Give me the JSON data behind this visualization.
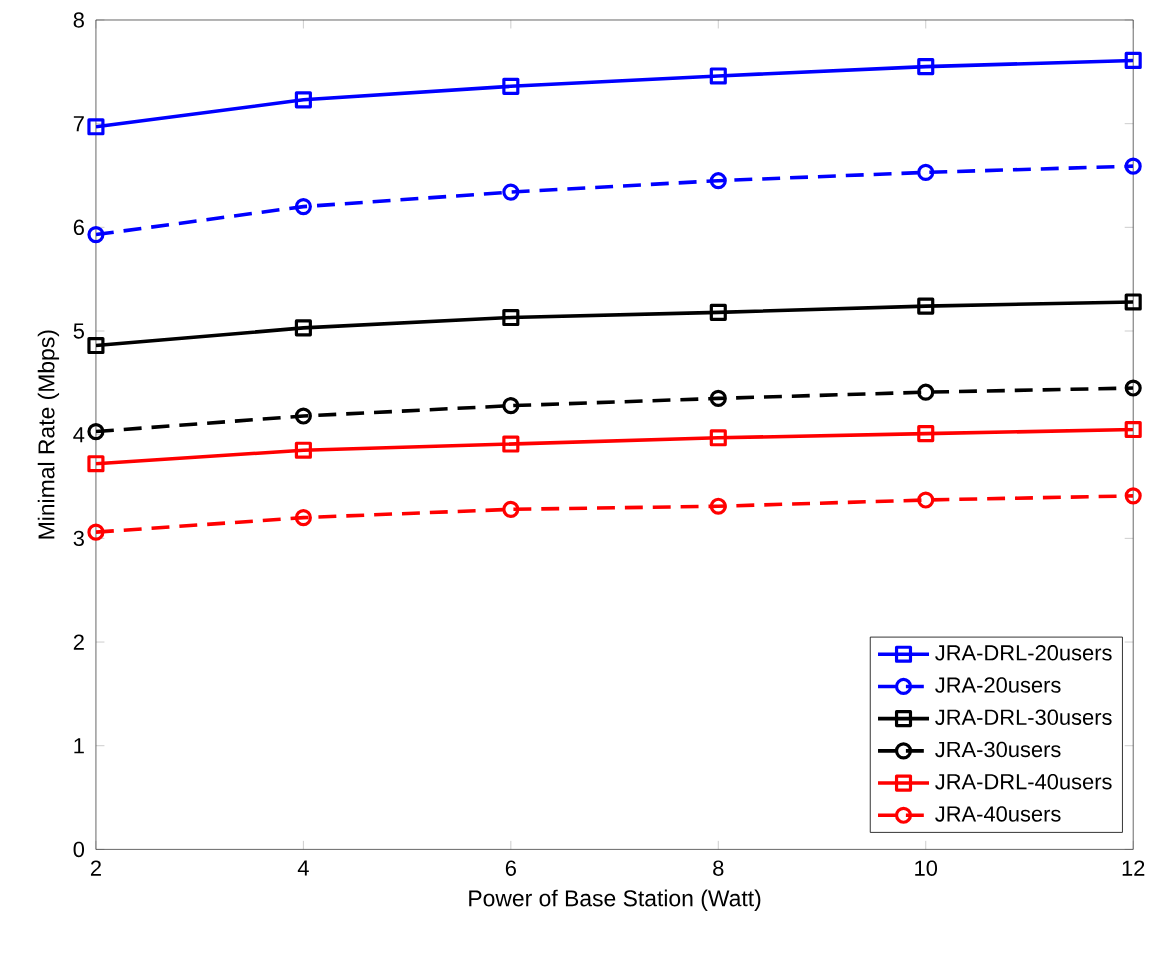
{
  "chart_data": {
    "type": "line",
    "xlabel": "Power of Base Station (Watt)",
    "ylabel": "Minimal Rate (Mbps)",
    "x": [
      2,
      4,
      6,
      8,
      10,
      12
    ],
    "xlim": [
      2,
      12
    ],
    "xticks": [
      2,
      4,
      6,
      8,
      10,
      12
    ],
    "ylim": [
      0,
      8
    ],
    "yticks": [
      0,
      1,
      2,
      3,
      4,
      5,
      6,
      7,
      8
    ],
    "legend": "bottom right",
    "grid": false,
    "series": [
      {
        "name": "JRA-DRL-20users",
        "color": "#0000ff",
        "marker": "square",
        "line_style": "solid",
        "values": [
          6.97,
          7.23,
          7.36,
          7.46,
          7.55,
          7.61
        ]
      },
      {
        "name": "JRA-20users",
        "color": "#0000ff",
        "marker": "circle",
        "line_style": "dashed",
        "values": [
          5.93,
          6.2,
          6.34,
          6.45,
          6.53,
          6.59
        ]
      },
      {
        "name": "JRA-DRL-30users",
        "color": "#000000",
        "marker": "square",
        "line_style": "solid",
        "values": [
          4.86,
          5.03,
          5.13,
          5.18,
          5.24,
          5.28
        ]
      },
      {
        "name": "JRA-30users",
        "color": "#000000",
        "marker": "circle",
        "line_style": "dashed",
        "values": [
          4.03,
          4.18,
          4.28,
          4.35,
          4.41,
          4.45
        ]
      },
      {
        "name": "JRA-DRL-40users",
        "color": "#ff0000",
        "marker": "square",
        "line_style": "solid",
        "values": [
          3.72,
          3.85,
          3.91,
          3.97,
          4.01,
          4.05
        ]
      },
      {
        "name": "JRA-40users",
        "color": "#ff0000",
        "marker": "circle",
        "line_style": "dashed",
        "values": [
          3.06,
          3.2,
          3.28,
          3.31,
          3.37,
          3.41
        ]
      }
    ]
  }
}
